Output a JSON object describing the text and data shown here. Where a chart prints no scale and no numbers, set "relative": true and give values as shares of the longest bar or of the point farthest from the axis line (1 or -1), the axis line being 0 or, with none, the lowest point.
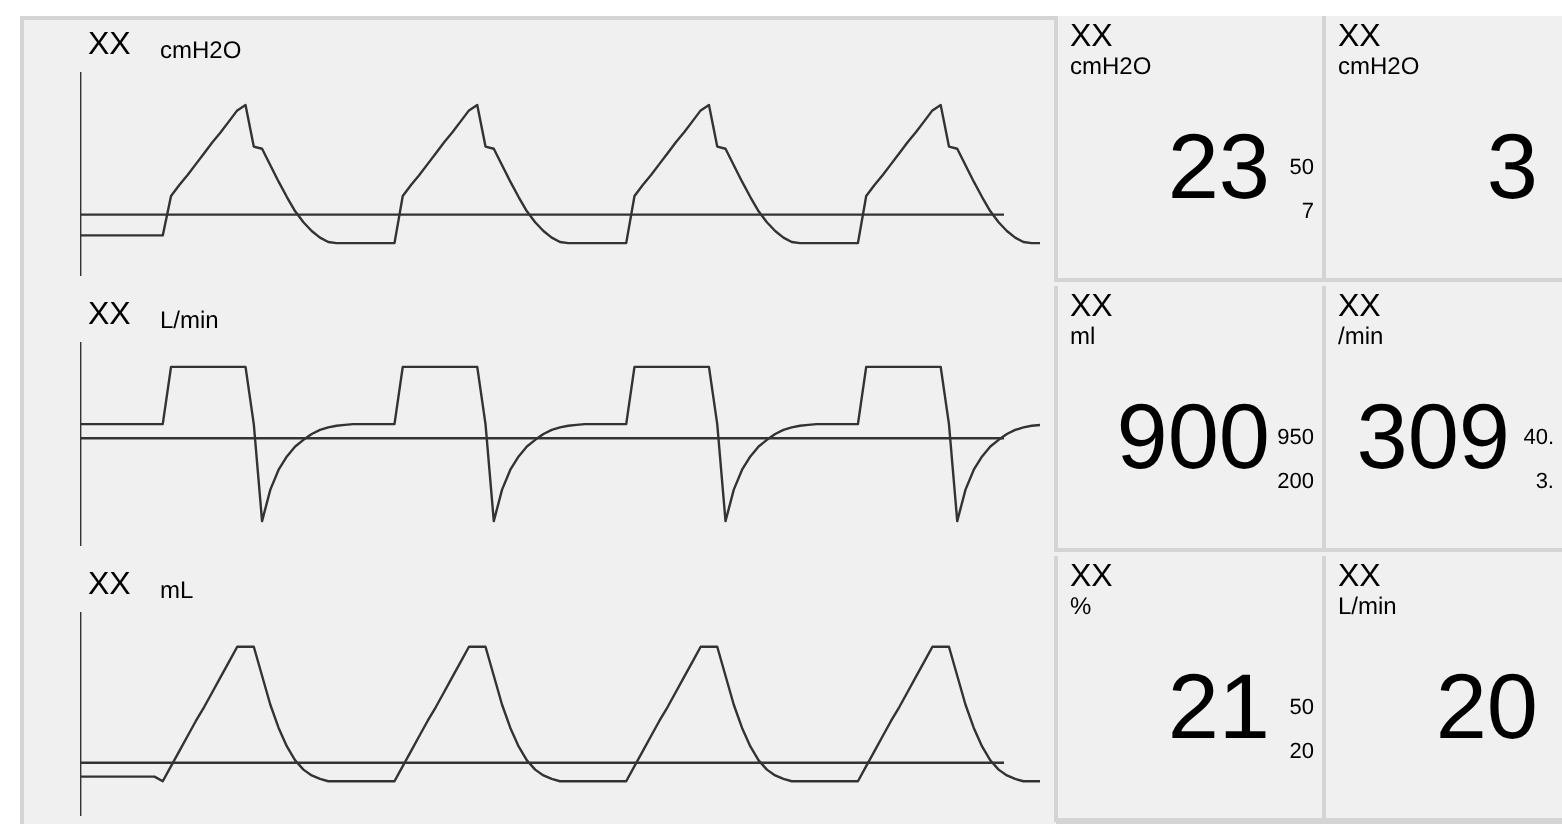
{
  "chart_data": [
    {
      "type": "line",
      "title": "XX",
      "subtitle": "cmH2O",
      "relative": true,
      "tick_labels": false,
      "marker": "none",
      "color": "#333333",
      "categories": [
        null,
        null,
        null,
        null,
        null,
        null,
        null,
        null,
        null,
        null,
        null,
        null,
        null,
        null,
        null,
        null,
        null,
        null,
        null,
        null,
        null,
        null,
        null,
        null,
        null,
        null,
        null,
        null,
        null,
        null,
        null,
        null,
        null,
        null,
        null,
        null,
        null,
        null,
        null,
        null,
        null,
        null,
        null,
        null,
        null,
        null,
        null,
        null,
        null,
        null,
        null,
        null,
        null,
        null,
        null,
        null,
        null,
        null,
        null,
        null,
        null,
        null,
        null,
        null,
        null,
        null,
        null,
        null,
        null,
        null,
        null,
        null,
        null,
        null,
        null,
        null,
        null,
        null,
        null,
        null,
        null,
        null,
        null,
        null,
        null,
        null,
        null,
        null,
        null,
        null,
        null,
        null,
        null,
        null,
        null,
        null,
        null,
        null,
        null,
        null,
        null,
        null,
        null,
        null,
        null,
        null,
        null,
        null,
        null,
        null,
        null,
        null,
        null,
        null,
        null,
        null,
        null
      ],
      "values": [
        -0.19,
        -0.19,
        -0.19,
        -0.19,
        -0.19,
        -0.19,
        -0.19,
        -0.19,
        -0.19,
        -0.19,
        -0.19,
        0.17,
        0.27,
        0.36,
        0.46,
        0.56,
        0.66,
        0.75,
        0.85,
        0.95,
        1,
        0.62,
        0.6,
        0.45,
        0.3,
        0.16,
        0.03,
        -0.07,
        -0.15,
        -0.21,
        -0.25,
        -0.26,
        -0.26,
        -0.26,
        -0.26,
        -0.26,
        -0.26,
        -0.26,
        -0.26,
        0.17,
        0.27,
        0.36,
        0.46,
        0.56,
        0.66,
        0.75,
        0.85,
        0.95,
        1,
        0.62,
        0.6,
        0.45,
        0.3,
        0.16,
        0.03,
        -0.07,
        -0.15,
        -0.21,
        -0.25,
        -0.26,
        -0.26,
        -0.26,
        -0.26,
        -0.26,
        -0.26,
        -0.26,
        -0.26,
        0.17,
        0.27,
        0.36,
        0.46,
        0.56,
        0.66,
        0.75,
        0.85,
        0.95,
        1,
        0.62,
        0.6,
        0.45,
        0.3,
        0.16,
        0.03,
        -0.07,
        -0.15,
        -0.21,
        -0.25,
        -0.26,
        -0.26,
        -0.26,
        -0.26,
        -0.26,
        -0.26,
        -0.26,
        -0.26,
        0.17,
        0.27,
        0.36,
        0.46,
        0.56,
        0.66,
        0.75,
        0.85,
        0.95,
        1,
        0.62,
        0.6,
        0.45,
        0.3,
        0.16,
        0.03,
        -0.07,
        -0.15,
        -0.21,
        -0.25,
        -0.26,
        -0.26
      ]
    },
    {
      "type": "other",
      "title": "XX",
      "subtitle": "cmH2O",
      "annotations": [
        "23",
        "50",
        "7"
      ]
    },
    {
      "type": "other",
      "title": "XX",
      "subtitle": "cmH2O",
      "annotations": [
        "3"
      ]
    },
    {
      "type": "line",
      "title": "XX",
      "subtitle": "L/min",
      "relative": true,
      "tick_labels": false,
      "marker": "none",
      "color": "#333333",
      "categories": [
        null,
        null,
        null,
        null,
        null,
        null,
        null,
        null,
        null,
        null,
        null,
        null,
        null,
        null,
        null,
        null,
        null,
        null,
        null,
        null,
        null,
        null,
        null,
        null,
        null,
        null,
        null,
        null,
        null,
        null,
        null,
        null,
        null,
        null,
        null,
        null,
        null,
        null,
        null,
        null,
        null,
        null,
        null,
        null,
        null,
        null,
        null,
        null,
        null,
        null,
        null,
        null,
        null,
        null,
        null,
        null,
        null,
        null,
        null,
        null,
        null,
        null,
        null,
        null,
        null,
        null,
        null,
        null,
        null,
        null,
        null,
        null,
        null,
        null,
        null,
        null,
        null,
        null,
        null,
        null,
        null,
        null,
        null,
        null,
        null,
        null,
        null,
        null,
        null,
        null,
        null,
        null,
        null,
        null,
        null,
        null,
        null,
        null,
        null,
        null,
        null,
        null,
        null,
        null,
        null,
        null,
        null,
        null,
        null,
        null,
        null,
        null,
        null,
        null,
        null,
        null,
        null
      ],
      "values": [
        0.17,
        0.17,
        0.17,
        0.17,
        0.17,
        0.17,
        0.17,
        0.17,
        0.17,
        0.17,
        0.17,
        0.86,
        0.86,
        0.86,
        0.86,
        0.86,
        0.86,
        0.86,
        0.86,
        0.86,
        0.86,
        0.17,
        -1,
        -0.62,
        -0.38,
        -0.22,
        -0.1,
        -0.02,
        0.05,
        0.1,
        0.13,
        0.15,
        0.16,
        0.17,
        0.17,
        0.17,
        0.17,
        0.17,
        0.17,
        0.86,
        0.86,
        0.86,
        0.86,
        0.86,
        0.86,
        0.86,
        0.86,
        0.86,
        0.86,
        0.17,
        -1,
        -0.62,
        -0.38,
        -0.22,
        -0.1,
        -0.02,
        0.05,
        0.1,
        0.13,
        0.15,
        0.16,
        0.17,
        0.17,
        0.17,
        0.17,
        0.17,
        0.17,
        0.86,
        0.86,
        0.86,
        0.86,
        0.86,
        0.86,
        0.86,
        0.86,
        0.86,
        0.86,
        0.17,
        -1,
        -0.62,
        -0.38,
        -0.22,
        -0.1,
        -0.02,
        0.05,
        0.1,
        0.13,
        0.15,
        0.16,
        0.17,
        0.17,
        0.17,
        0.17,
        0.17,
        0.17,
        0.86,
        0.86,
        0.86,
        0.86,
        0.86,
        0.86,
        0.86,
        0.86,
        0.86,
        0.86,
        0.17,
        -1,
        -0.62,
        -0.38,
        -0.22,
        -0.1,
        -0.02,
        0.05,
        0.1,
        0.13,
        0.15,
        0.16
      ]
    },
    {
      "type": "other",
      "title": "XX",
      "subtitle": "ml",
      "annotations": [
        "900",
        "950",
        "200"
      ]
    },
    {
      "type": "other",
      "title": "XX",
      "subtitle": "/min",
      "annotations": [
        "309",
        "40.",
        "3."
      ]
    },
    {
      "type": "line",
      "title": "XX",
      "subtitle": "mL",
      "relative": true,
      "tick_labels": false,
      "marker": "none",
      "color": "#333333",
      "categories": [
        null,
        null,
        null,
        null,
        null,
        null,
        null,
        null,
        null,
        null,
        null,
        null,
        null,
        null,
        null,
        null,
        null,
        null,
        null,
        null,
        null,
        null,
        null,
        null,
        null,
        null,
        null,
        null,
        null,
        null,
        null,
        null,
        null,
        null,
        null,
        null,
        null,
        null,
        null,
        null,
        null,
        null,
        null,
        null,
        null,
        null,
        null,
        null,
        null,
        null,
        null,
        null,
        null,
        null,
        null,
        null,
        null,
        null,
        null,
        null,
        null,
        null,
        null,
        null,
        null,
        null,
        null,
        null,
        null,
        null,
        null,
        null,
        null,
        null,
        null,
        null,
        null,
        null,
        null,
        null,
        null,
        null,
        null,
        null,
        null,
        null,
        null,
        null,
        null,
        null,
        null,
        null,
        null,
        null,
        null,
        null,
        null,
        null,
        null,
        null,
        null,
        null,
        null,
        null,
        null,
        null,
        null,
        null,
        null,
        null,
        null,
        null,
        null,
        null,
        null,
        null,
        null
      ],
      "values": [
        -0.12,
        -0.12,
        -0.12,
        -0.12,
        -0.12,
        -0.12,
        -0.12,
        -0.12,
        -0.12,
        -0.12,
        -0.16,
        -0.03,
        0.1,
        0.23,
        0.36,
        0.48,
        0.61,
        0.74,
        0.87,
        1,
        1,
        1,
        0.75,
        0.5,
        0.3,
        0.14,
        0.02,
        -0.06,
        -0.11,
        -0.14,
        -0.16,
        -0.16,
        -0.16,
        -0.16,
        -0.16,
        -0.16,
        -0.16,
        -0.16,
        -0.16,
        -0.03,
        0.1,
        0.23,
        0.36,
        0.48,
        0.61,
        0.74,
        0.87,
        1,
        1,
        1,
        0.75,
        0.5,
        0.3,
        0.14,
        0.02,
        -0.06,
        -0.11,
        -0.14,
        -0.16,
        -0.16,
        -0.16,
        -0.16,
        -0.16,
        -0.16,
        -0.16,
        -0.16,
        -0.16,
        -0.03,
        0.1,
        0.23,
        0.36,
        0.48,
        0.61,
        0.74,
        0.87,
        1,
        1,
        1,
        0.75,
        0.5,
        0.3,
        0.14,
        0.02,
        -0.06,
        -0.11,
        -0.14,
        -0.16,
        -0.16,
        -0.16,
        -0.16,
        -0.16,
        -0.16,
        -0.16,
        -0.16,
        -0.16,
        -0.03,
        0.1,
        0.23,
        0.36,
        0.48,
        0.61,
        0.74,
        0.87,
        1,
        1,
        1,
        0.75,
        0.5,
        0.3,
        0.14,
        0.02,
        -0.06,
        -0.11,
        -0.14,
        -0.16,
        -0.16,
        -0.16
      ]
    },
    {
      "type": "other",
      "title": "XX",
      "subtitle": "%",
      "annotations": [
        "21",
        "50",
        "20"
      ]
    },
    {
      "type": "other",
      "title": "XX",
      "subtitle": "L/min",
      "annotations": [
        "20"
      ]
    }
  ]
}
